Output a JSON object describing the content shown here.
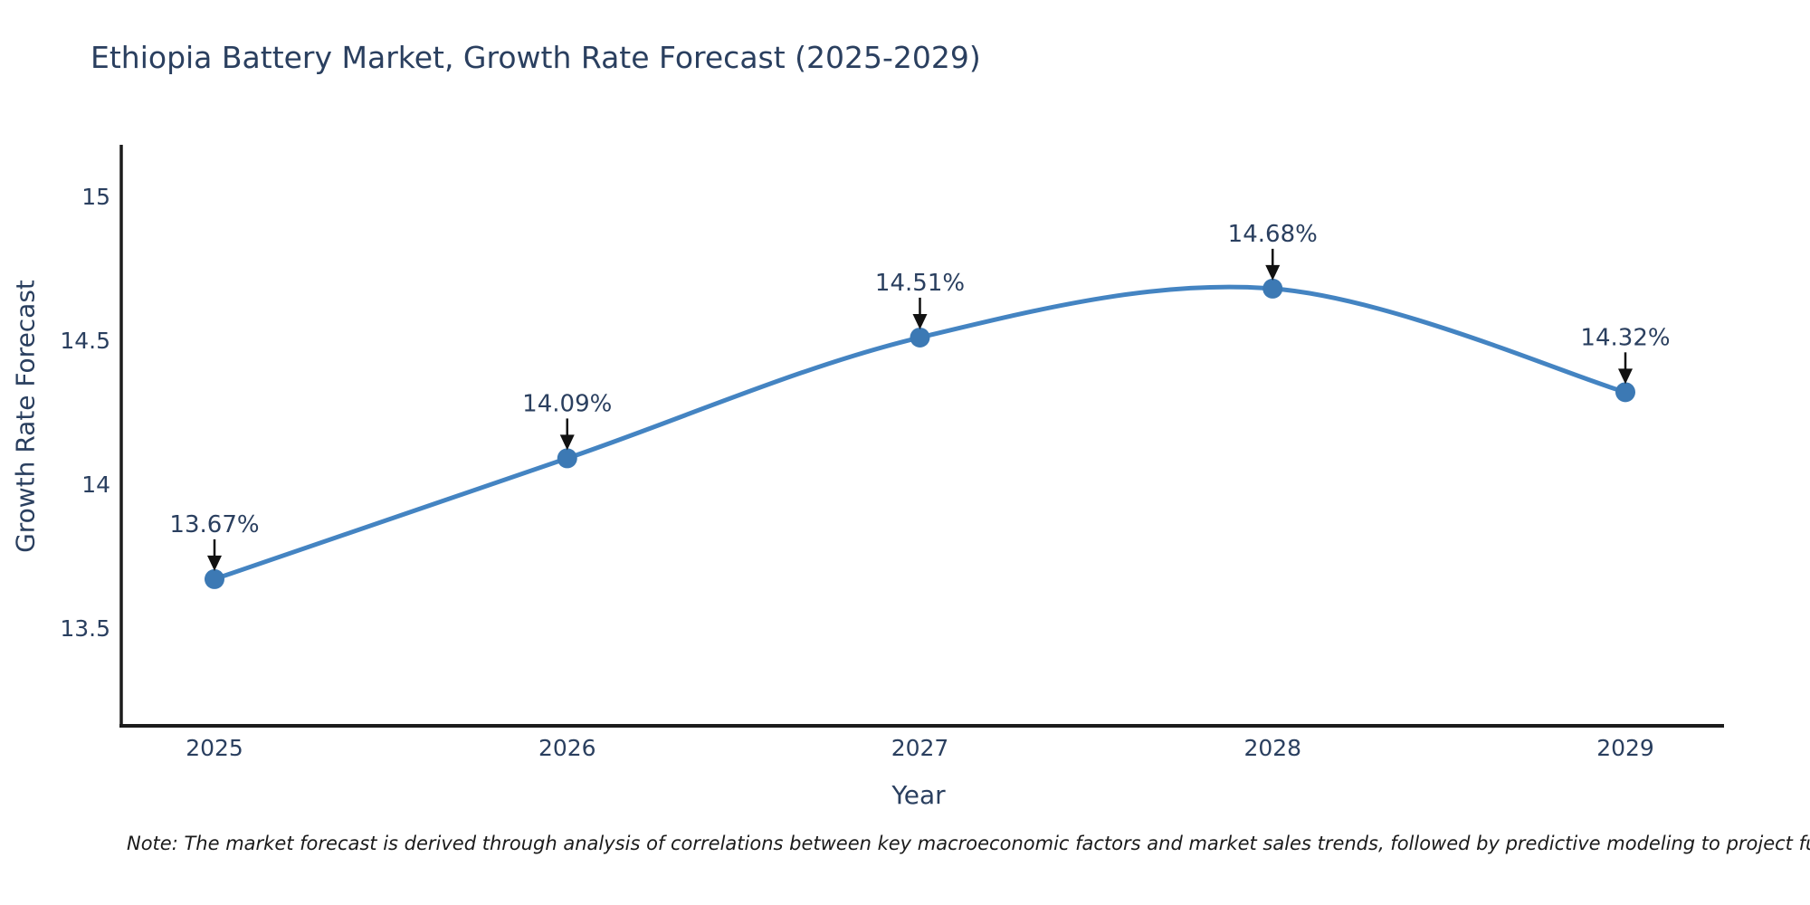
{
  "chart": {
    "title": "Ethiopia Battery Market, Growth Rate Forecast (2025-2029)",
    "xlabel": "Year",
    "ylabel": "Growth Rate Forecast"
  },
  "note": "Note: The market forecast is derived through analysis of correlations between key macroeconomic factors and market sales trends, followed by predictive modeling to project future sal",
  "chart_data": {
    "type": "line",
    "title": "Ethiopia Battery Market, Growth Rate Forecast (2025-2029)",
    "xlabel": "Year",
    "ylabel": "Growth Rate Forecast",
    "x": [
      "2025",
      "2026",
      "2027",
      "2028",
      "2029"
    ],
    "y": [
      13.67,
      14.09,
      14.51,
      14.68,
      14.32
    ],
    "point_labels": [
      "13.67%",
      "14.09%",
      "14.51%",
      "14.68%",
      "14.32%"
    ],
    "yticks": [
      {
        "value": 13.5,
        "label": "13.5"
      },
      {
        "value": 14,
        "label": "14"
      },
      {
        "value": 14.5,
        "label": "14.5"
      },
      {
        "value": 15,
        "label": "15"
      }
    ],
    "ylim": [
      13.16,
      15.18
    ],
    "line_shape": "spline",
    "grid": false,
    "legend": false,
    "annotations_arrows": true,
    "colors": {
      "line": "#4484c2",
      "marker": "#3c79b4",
      "arrow": "#111111",
      "text": "#2a3f5f",
      "axis": "#1c1c1c",
      "background": "#ffffff"
    }
  }
}
